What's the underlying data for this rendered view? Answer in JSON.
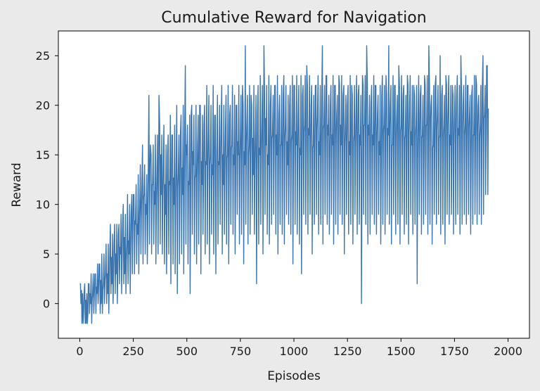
{
  "chart_data": {
    "type": "line",
    "title": "Cumulative Reward for Navigation",
    "xlabel": "Episodes",
    "ylabel": "Reward",
    "xlim": [
      -100,
      2100
    ],
    "ylim": [
      -3.5,
      27.5
    ],
    "xticks": [
      0,
      250,
      500,
      750,
      1000,
      1250,
      1500,
      1750,
      2000
    ],
    "yticks": [
      0,
      5,
      10,
      15,
      20,
      25
    ],
    "grid": false,
    "legend": false,
    "color": "#3a75b0",
    "series": [
      {
        "points_note_free": true,
        "x_start": 0,
        "x_step": 10,
        "values": [
          2,
          -2,
          1,
          -2,
          2,
          0,
          1,
          3,
          1,
          4,
          0,
          2,
          3,
          1,
          5,
          2,
          6,
          3,
          7,
          5,
          8,
          3,
          6,
          5,
          9,
          11,
          8,
          7,
          10,
          12,
          11,
          9,
          14,
          16,
          12,
          10,
          13,
          21,
          11,
          14,
          9,
          15,
          12,
          17,
          10,
          14,
          13,
          17,
          11,
          18,
          15,
          12,
          19,
          14,
          13,
          16,
          20,
          12,
          18,
          14,
          17,
          15,
          13,
          19,
          16,
          14,
          18,
          12,
          17,
          15,
          19,
          16,
          14,
          20,
          15,
          17,
          22,
          14,
          18,
          16,
          21,
          13,
          17,
          19,
          15,
          18,
          26,
          16,
          14,
          20,
          17,
          22,
          15,
          19,
          16,
          21,
          18,
          14,
          20,
          17,
          22,
          16,
          19,
          15,
          21,
          18,
          24,
          17,
          20,
          16,
          22,
          19,
          15,
          21,
          18,
          23,
          17,
          20,
          16,
          22,
          19,
          23,
          16,
          21,
          18,
          20,
          15,
          22,
          17,
          19,
          21,
          16,
          23,
          18,
          26,
          17,
          20,
          16,
          22,
          19,
          15,
          21,
          18,
          23,
          17,
          20,
          16,
          22,
          19,
          24,
          18,
          21,
          17,
          23,
          20,
          16,
          22,
          18,
          19,
          21,
          17,
          23,
          18,
          26,
          20,
          16,
          22,
          19,
          17,
          21,
          18,
          23,
          20,
          16,
          22,
          19,
          21,
          17,
          25,
          20,
          18,
          22,
          19,
          21,
          17,
          23,
          20,
          18,
          22,
          19,
          24
        ],
        "lows": [
          0,
          -2,
          -2,
          -2,
          -1,
          -2,
          -1,
          -1,
          0,
          -1,
          -1,
          0,
          0,
          -1,
          1,
          0,
          1,
          0,
          2,
          1,
          2,
          1,
          2,
          1,
          3,
          3,
          4,
          3,
          5,
          4,
          5,
          4,
          6,
          5,
          6,
          4,
          5,
          6,
          5,
          4,
          3,
          5,
          2,
          4,
          3,
          1,
          4,
          5,
          3,
          6,
          4,
          1,
          7,
          5,
          4,
          6,
          3,
          7,
          5,
          6,
          4,
          7,
          5,
          3,
          6,
          8,
          5,
          7,
          6,
          4,
          8,
          7,
          5,
          9,
          6,
          7,
          4,
          8,
          6,
          7,
          9,
          7,
          2,
          6,
          8,
          5,
          9,
          7,
          6,
          8,
          9,
          7,
          5,
          8,
          7,
          6,
          9,
          8,
          7,
          4,
          8,
          7,
          6,
          3,
          9,
          8,
          7,
          9,
          5,
          8,
          9,
          7,
          8,
          6,
          9,
          8,
          7,
          9,
          6,
          8,
          7,
          9,
          8,
          5,
          9,
          7,
          8,
          6,
          9,
          7,
          8,
          0,
          9,
          8,
          6,
          7,
          9,
          8,
          7,
          9,
          6,
          8,
          7,
          9,
          8,
          6,
          9,
          7,
          8,
          6,
          9,
          7,
          8,
          6,
          9,
          7,
          8,
          2,
          9,
          7,
          8,
          9,
          7,
          8,
          6,
          9,
          8,
          9,
          7,
          8,
          6,
          9,
          8,
          9,
          7,
          8,
          9,
          7,
          8,
          9,
          8,
          9,
          7,
          8,
          9,
          8,
          9,
          8,
          9,
          11,
          11
        ],
        "highs": [
          2,
          1,
          2,
          1,
          2,
          3,
          3,
          3,
          4,
          4,
          5,
          5,
          6,
          6,
          8,
          7,
          8,
          8,
          8,
          9,
          10,
          9,
          11,
          10,
          11,
          11,
          12,
          13,
          14,
          16,
          14,
          13,
          21,
          15,
          16,
          17,
          17,
          18,
          17,
          18,
          16,
          17,
          19,
          17,
          18,
          20,
          17,
          19,
          20,
          24,
          18,
          19,
          20,
          19,
          20,
          19,
          20,
          19,
          20,
          22,
          21,
          20,
          22,
          19,
          21,
          20,
          22,
          20,
          21,
          22,
          20,
          22,
          21,
          20,
          22,
          21,
          20,
          26,
          21,
          22,
          20,
          22,
          21,
          22,
          23,
          22,
          21,
          22,
          23,
          22,
          21,
          22,
          23,
          21,
          22,
          23,
          22,
          21,
          22,
          23,
          22,
          23,
          22,
          23,
          22,
          23,
          22,
          23,
          22,
          21,
          22,
          23,
          22,
          26,
          22,
          23,
          21,
          22,
          23,
          22,
          21,
          22,
          23,
          22,
          21,
          22,
          23,
          21,
          22,
          23,
          22,
          21,
          22,
          23,
          22,
          21,
          22,
          23,
          22,
          21,
          22,
          23,
          22,
          21,
          26,
          22,
          23,
          22,
          21,
          22,
          23,
          22,
          21,
          22,
          23,
          22,
          21,
          22,
          23,
          22,
          21,
          22,
          23,
          22,
          21,
          22,
          23,
          22,
          25,
          22,
          21,
          22,
          23,
          22,
          21,
          22,
          23,
          22,
          21,
          22,
          23,
          22,
          21,
          22,
          23,
          22,
          21,
          22,
          25,
          22,
          24
        ]
      }
    ]
  }
}
